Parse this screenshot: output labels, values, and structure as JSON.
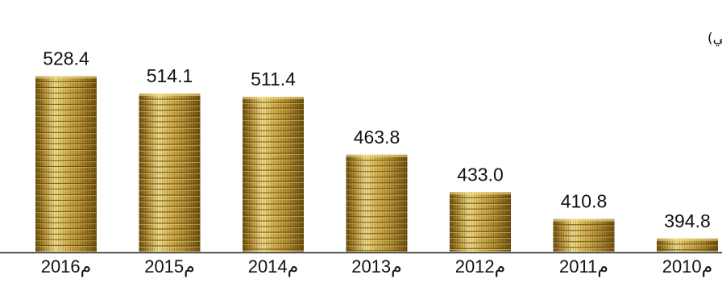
{
  "chart_data": {
    "type": "bar",
    "unit_label": "(مليار دولار أمريكي)",
    "categories": [
      "2016م",
      "2015م",
      "2014م",
      "2013م",
      "2012م",
      "2011م",
      "2010م"
    ],
    "values": [
      528.4,
      514.1,
      511.4,
      463.8,
      433.0,
      410.8,
      394.8
    ],
    "value_labels": [
      "528.4",
      "514.1",
      "511.4",
      "463.8",
      "433.0",
      "410.8",
      "394.8"
    ],
    "bar_style": "stacked gold coins",
    "colors": {
      "coin_dark": "#7a5a12",
      "coin_mid": "#c9a340",
      "coin_light": "#f3dd8a",
      "coin_edge": "#5e4409"
    },
    "grid": false,
    "legend": "none"
  }
}
